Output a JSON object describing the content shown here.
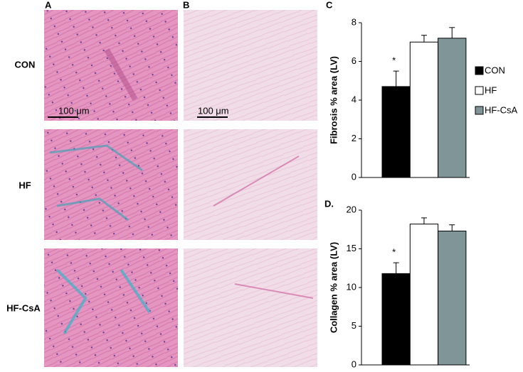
{
  "panels": {
    "labels": [
      "A",
      "B"
    ],
    "rows": [
      "CON",
      "HF",
      "HF-CsA"
    ],
    "scale_bars": [
      "100 μm",
      "100 μm"
    ]
  },
  "chart_data": [
    {
      "type": "bar",
      "label": "C",
      "ylabel": "Fibrosis % area (LV)",
      "ylim": [
        0,
        8
      ],
      "yticks": [
        0,
        2,
        4,
        6,
        8
      ],
      "series": [
        {
          "name": "CON",
          "color": "#000000",
          "values": [
            4.7
          ],
          "errors": [
            0.8
          ]
        },
        {
          "name": "HF",
          "color": "#ffffff",
          "values": [
            7.0
          ],
          "errors": [
            0.35
          ]
        },
        {
          "name": "HF-CsA",
          "color": "#7f9598",
          "values": [
            7.2
          ],
          "errors": [
            0.55
          ]
        }
      ],
      "annotation": "*",
      "legend": "right"
    },
    {
      "type": "bar",
      "label": "D.",
      "ylabel": "Collagen % area (LV)",
      "ylim": [
        0,
        20
      ],
      "yticks": [
        0,
        5,
        10,
        15,
        20
      ],
      "series": [
        {
          "color": "#000000",
          "values": [
            11.8
          ],
          "errors": [
            1.4
          ]
        },
        {
          "color": "#ffffff",
          "values": [
            18.2
          ],
          "errors": [
            0.8
          ]
        },
        {
          "color": "#7f9598",
          "values": [
            17.3
          ],
          "errors": [
            0.8
          ]
        }
      ],
      "annotation": "*"
    }
  ]
}
